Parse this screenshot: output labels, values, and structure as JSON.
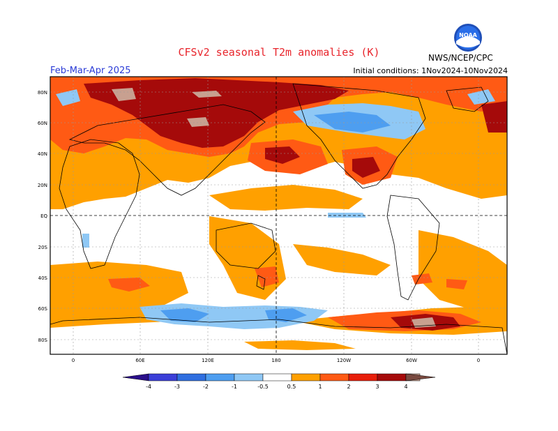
{
  "header": {
    "title": "CFSv2 seasonal T2m anomalies (K)",
    "season": "Feb-Mar-Apr 2025",
    "initial_conditions": "Initial conditions: 1Nov2024-10Nov2024",
    "agency": "NWS/NCEP/CPC",
    "logo_text": "NOAA"
  },
  "map": {
    "lat_labels": [
      "80N",
      "60N",
      "40N",
      "20N",
      "EQ",
      "20S",
      "40S",
      "60S",
      "80S"
    ],
    "lon_labels": [
      "0",
      "60E",
      "120E",
      "180",
      "120W",
      "60W",
      "0"
    ]
  },
  "colorbar": {
    "tick_labels": [
      "-4",
      "-3",
      "-2",
      "-1",
      "-0.5",
      "0.5",
      "1",
      "2",
      "3",
      "4"
    ],
    "colors": [
      "#2a0f8a",
      "#3b3fd8",
      "#2f6fe0",
      "#4e9ef0",
      "#8fc8f5",
      "#ffffff",
      "#ffa000",
      "#ff5a14",
      "#e81e0a",
      "#a50a0a",
      "#c8a090",
      "#7a4a40"
    ]
  },
  "colors": {
    "title": "#e8242b",
    "season": "#2a3bd6"
  }
}
